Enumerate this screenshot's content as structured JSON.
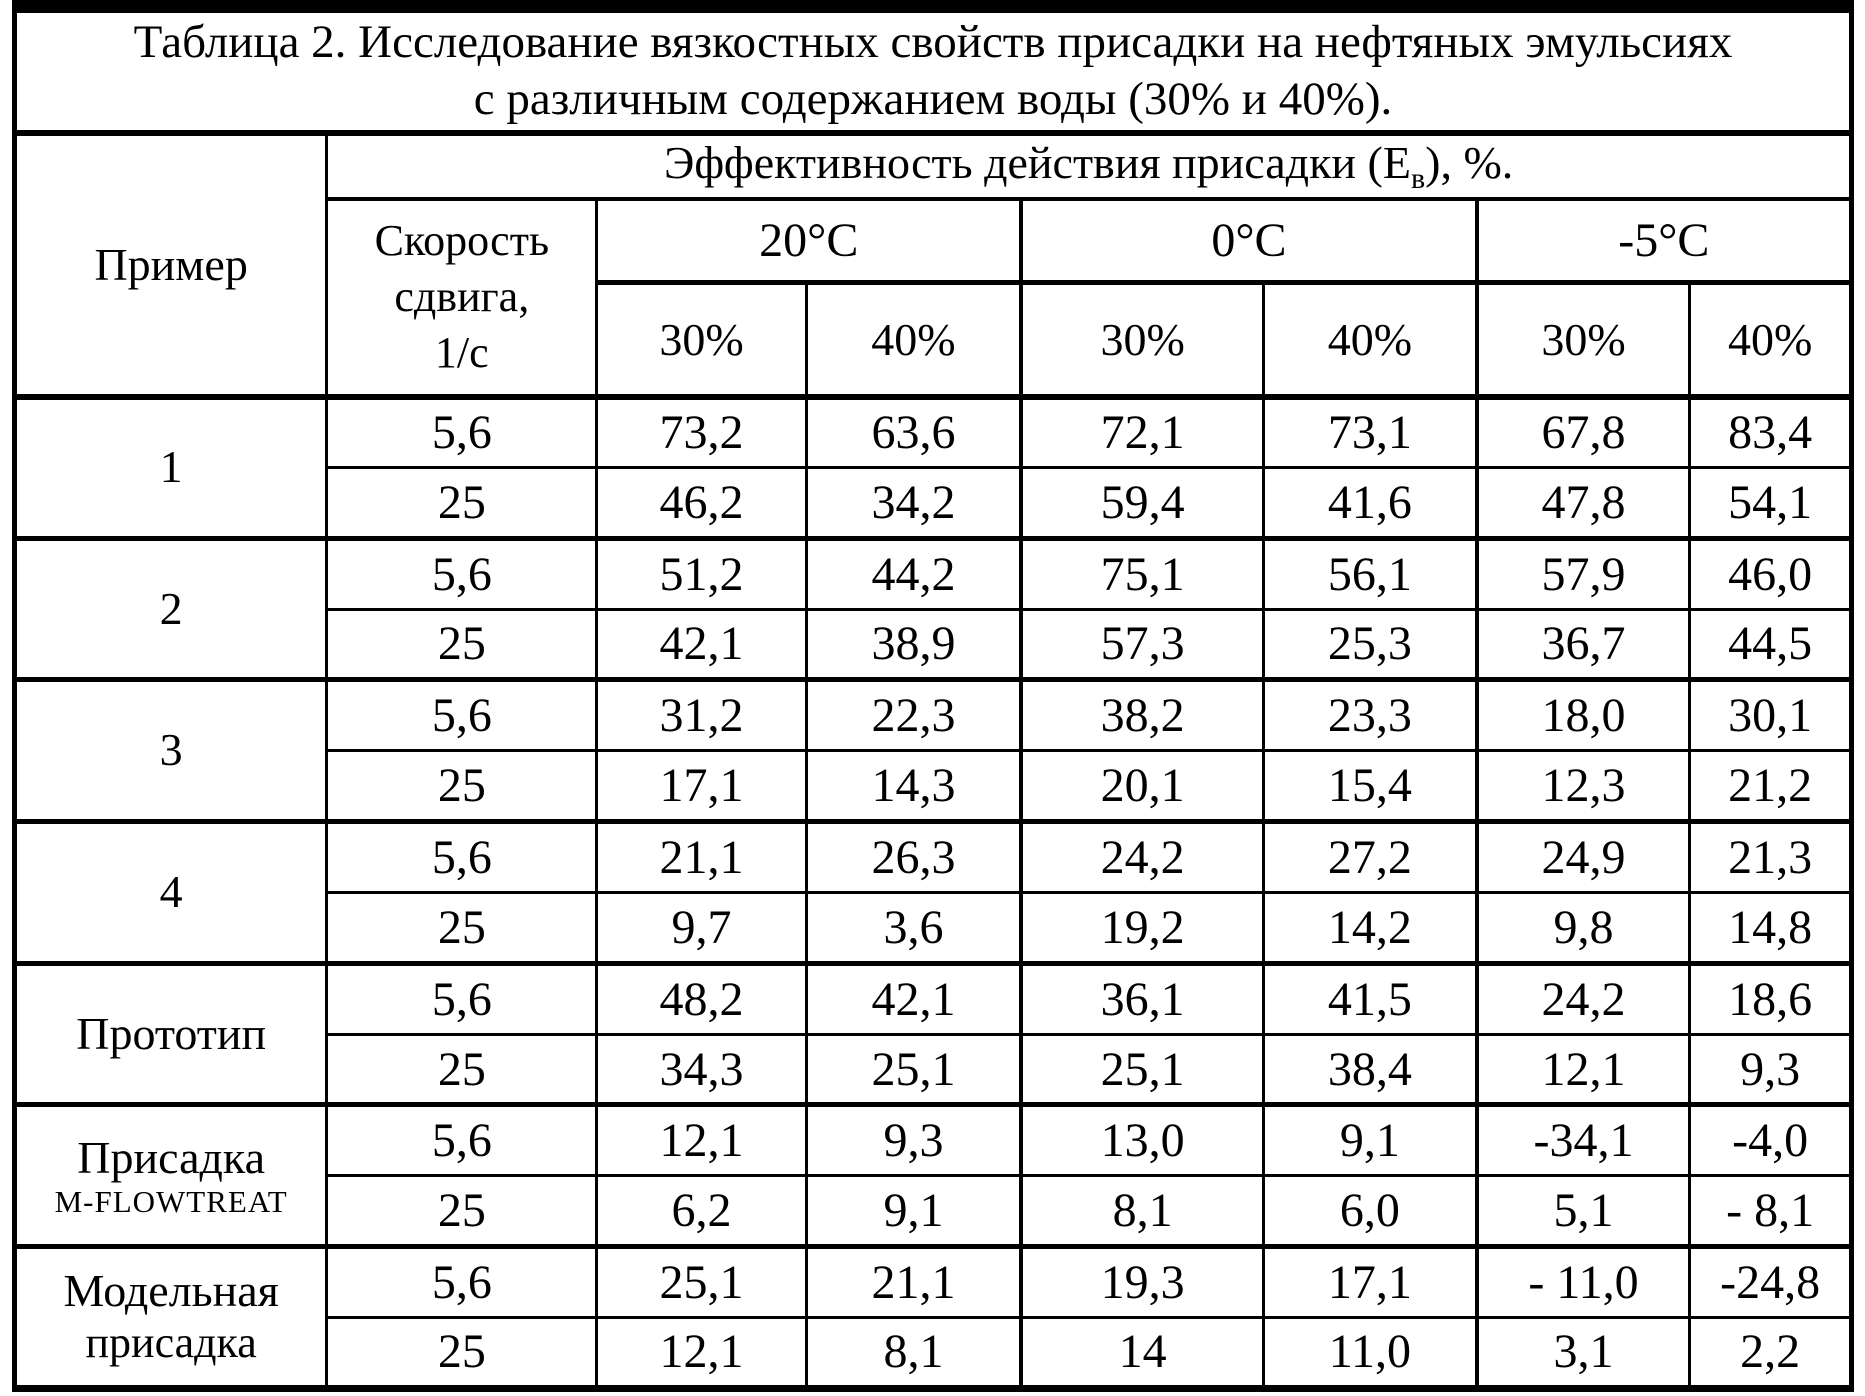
{
  "colors": {
    "ink": "#000000",
    "paper": "#ffffff"
  },
  "title": {
    "line1": "Таблица 2. Исследование вязкостных свойств присадки на нефтяных эмульсиях",
    "line2": "с различным содержанием воды (30% и 40%)."
  },
  "header": {
    "example": "Пример",
    "shear_line1": "Скорость",
    "shear_line2": "сдвига,",
    "shear_line3": "1/с",
    "effectiveness_prefix": "Эффективность действия присадки (Е",
    "effectiveness_sub": "в",
    "effectiveness_suffix": "), %.",
    "temps": [
      "20°C",
      "0°C",
      "-5°C"
    ],
    "percents": [
      "30%",
      "40%",
      "30%",
      "40%",
      "30%",
      "40%"
    ]
  },
  "rows": [
    {
      "label": "1",
      "label2": "",
      "small2": false,
      "sub": [
        {
          "rate": "5,6",
          "values": [
            "73,2",
            "63,6",
            "72,1",
            "73,1",
            "67,8",
            "83,4"
          ]
        },
        {
          "rate": "25",
          "values": [
            "46,2",
            "34,2",
            "59,4",
            "41,6",
            "47,8",
            "54,1"
          ]
        }
      ]
    },
    {
      "label": "2",
      "label2": "",
      "small2": false,
      "sub": [
        {
          "rate": "5,6",
          "values": [
            "51,2",
            "44,2",
            "75,1",
            "56,1",
            "57,9",
            "46,0"
          ]
        },
        {
          "rate": "25",
          "values": [
            "42,1",
            "38,9",
            "57,3",
            "25,3",
            "36,7",
            "44,5"
          ]
        }
      ]
    },
    {
      "label": "3",
      "label2": "",
      "small2": false,
      "sub": [
        {
          "rate": "5,6",
          "values": [
            "31,2",
            "22,3",
            "38,2",
            "23,3",
            "18,0",
            "30,1"
          ]
        },
        {
          "rate": "25",
          "values": [
            "17,1",
            "14,3",
            "20,1",
            "15,4",
            "12,3",
            "21,2"
          ]
        }
      ]
    },
    {
      "label": "4",
      "label2": "",
      "small2": false,
      "sub": [
        {
          "rate": "5,6",
          "values": [
            "21,1",
            "26,3",
            "24,2",
            "27,2",
            "24,9",
            "21,3"
          ]
        },
        {
          "rate": "25",
          "values": [
            "9,7",
            "3,6",
            "19,2",
            "14,2",
            "9,8",
            "14,8"
          ]
        }
      ]
    },
    {
      "label": "Прототип",
      "label2": "",
      "small2": false,
      "sub": [
        {
          "rate": "5,6",
          "values": [
            "48,2",
            "42,1",
            "36,1",
            "41,5",
            "24,2",
            "18,6"
          ]
        },
        {
          "rate": "25",
          "values": [
            "34,3",
            "25,1",
            "25,1",
            "38,4",
            "12,1",
            "9,3"
          ]
        }
      ]
    },
    {
      "label": "Присадка",
      "label2": "M-FLOWTREAT",
      "small2": true,
      "sub": [
        {
          "rate": "5,6",
          "values": [
            "12,1",
            "9,3",
            "13,0",
            "9,1",
            "-34,1",
            "-4,0"
          ]
        },
        {
          "rate": "25",
          "values": [
            "6,2",
            "9,1",
            "8,1",
            "6,0",
            "5,1",
            "- 8,1"
          ]
        }
      ]
    },
    {
      "label": "Модельная",
      "label2": "присадка",
      "small2": false,
      "sub": [
        {
          "rate": "5,6",
          "values": [
            "25,1",
            "21,1",
            "19,3",
            "17,1",
            "- 11,0",
            "-24,8"
          ]
        },
        {
          "rate": "25",
          "values": [
            "12,1",
            "8,1",
            "14",
            "11,0",
            "3,1",
            "2,2"
          ]
        }
      ]
    }
  ]
}
